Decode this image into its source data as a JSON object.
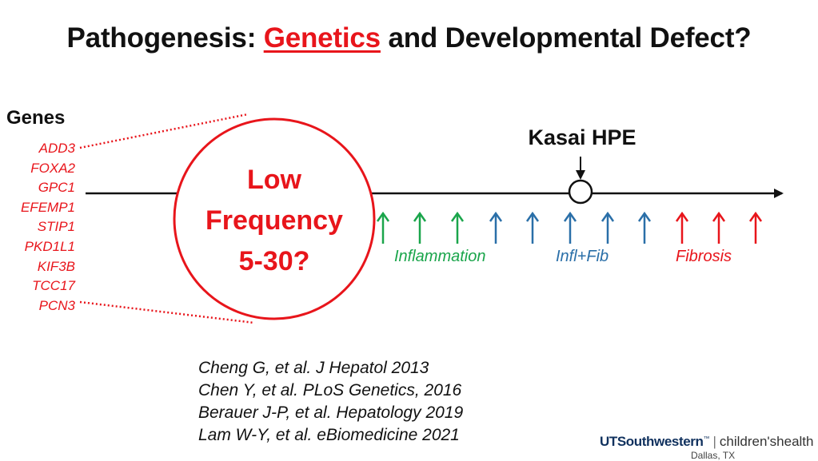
{
  "title": {
    "prefix": "Pathogenesis: ",
    "highlight": "Genetics",
    "suffix": " and Developmental Defect?"
  },
  "genes": {
    "heading": "Genes",
    "list": [
      "ADD3",
      "FOXA2",
      "GPC1",
      "EFEMP1",
      "STIP1",
      "PKD1L1",
      "KIF3B",
      "TCC17",
      "PCN3"
    ]
  },
  "circle": {
    "line1": "Low",
    "line2": "Frequency",
    "line3": "5-30?"
  },
  "kasai_label": "Kasai HPE",
  "phases": {
    "inflammation": "Inflammation",
    "infl_fib": "Infl+Fib",
    "fibrosis": "Fibrosis"
  },
  "colors": {
    "red": "#e8151b",
    "green": "#1aa54b",
    "blue": "#2a6fa8"
  },
  "references": [
    "Cheng G, et al. J Hepatol 2013",
    "Chen Y, et al. PLoS Genetics, 2016",
    "Berauer J-P, et al. Hepatology 2019",
    "Lam W-Y, et al. eBiomedicine 2021"
  ],
  "logo": {
    "uts": "UTSouthwestern",
    "tm": "™",
    "sep": "|",
    "childrens": "children'shealth",
    "city": "Dallas, TX"
  }
}
